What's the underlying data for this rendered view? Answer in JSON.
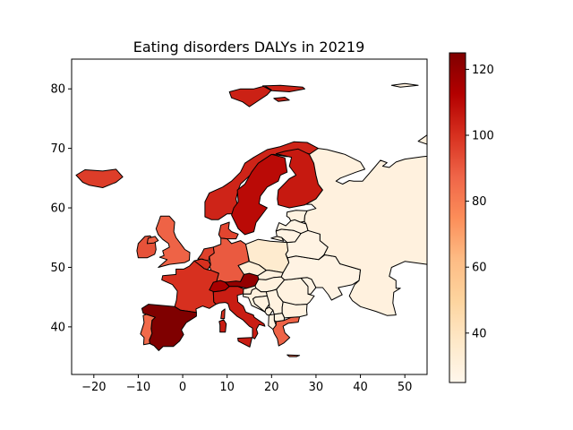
{
  "chart_data": {
    "type": "choropleth",
    "title": "Eating disorders DALYs in 20219",
    "xlabel": "",
    "ylabel": "",
    "x_ticks": [
      -20,
      -10,
      0,
      10,
      20,
      30,
      40,
      50
    ],
    "y_ticks": [
      40,
      50,
      60,
      70,
      80
    ],
    "xlim": [
      -25,
      55
    ],
    "ylim": [
      32,
      85
    ],
    "colorbar": {
      "colormap": "OrRd",
      "range": [
        25,
        125
      ],
      "ticks": [
        40,
        60,
        80,
        100,
        120
      ]
    },
    "regions": [
      {
        "name": "Iceland",
        "value": 97
      },
      {
        "name": "Norway",
        "value": 103
      },
      {
        "name": "Sweden",
        "value": 110
      },
      {
        "name": "Finland",
        "value": 106
      },
      {
        "name": "Svalbard",
        "value": 104
      },
      {
        "name": "Ireland",
        "value": 92
      },
      {
        "name": "United Kingdom",
        "value": 88
      },
      {
        "name": "Denmark",
        "value": 95
      },
      {
        "name": "Netherlands",
        "value": 96
      },
      {
        "name": "Belgium",
        "value": 100
      },
      {
        "name": "Germany",
        "value": 90
      },
      {
        "name": "France",
        "value": 100
      },
      {
        "name": "Switzerland",
        "value": 115
      },
      {
        "name": "Austria",
        "value": 120
      },
      {
        "name": "Italy",
        "value": 105
      },
      {
        "name": "Spain",
        "value": 125
      },
      {
        "name": "Portugal",
        "value": 86
      },
      {
        "name": "Greece",
        "value": 88
      },
      {
        "name": "Poland",
        "value": 35
      },
      {
        "name": "Czechia",
        "value": 32
      },
      {
        "name": "Slovakia",
        "value": 30
      },
      {
        "name": "Hungary",
        "value": 30
      },
      {
        "name": "Slovenia",
        "value": 32
      },
      {
        "name": "Croatia",
        "value": 30
      },
      {
        "name": "Bosnia and Herzegovina",
        "value": 29
      },
      {
        "name": "Serbia",
        "value": 29
      },
      {
        "name": "Romania",
        "value": 29
      },
      {
        "name": "Bulgaria",
        "value": 29
      },
      {
        "name": "Moldova",
        "value": 28
      },
      {
        "name": "Ukraine",
        "value": 28
      },
      {
        "name": "Belarus",
        "value": 28
      },
      {
        "name": "Lithuania",
        "value": 28
      },
      {
        "name": "Latvia",
        "value": 28
      },
      {
        "name": "Estonia",
        "value": 29
      },
      {
        "name": "Russia",
        "value": 30
      },
      {
        "name": "North Macedonia",
        "value": 29
      },
      {
        "name": "Albania",
        "value": 29
      },
      {
        "name": "Montenegro",
        "value": 29
      }
    ]
  }
}
